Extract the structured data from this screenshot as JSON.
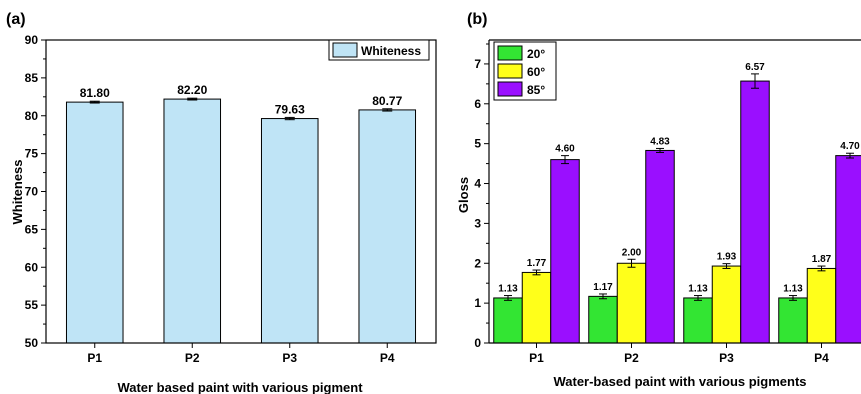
{
  "colors": {
    "bar_a": "#bfe4f6",
    "g20": "#33e533",
    "g60": "#ffff1a",
    "g85": "#9a0fff",
    "axis": "#000000"
  },
  "chart_data": [
    {
      "panel_label": "(a)",
      "type": "bar",
      "categories": [
        "P1",
        "P2",
        "P3",
        "P4"
      ],
      "series": [
        {
          "name": "Whiteness",
          "values": [
            81.8,
            82.2,
            79.63,
            80.77
          ],
          "errors": [
            0.12,
            0.12,
            0.15,
            0.15
          ]
        }
      ],
      "value_labels": [
        "81.80",
        "82.20",
        "79.63",
        "80.77"
      ],
      "xlabel": "Water based paint with various pigment",
      "ylabel": "Whiteness",
      "ylim": [
        50,
        90
      ],
      "yticks": [
        "50",
        "55",
        "60",
        "65",
        "70",
        "75",
        "80",
        "85",
        "90"
      ],
      "legend": "top-right",
      "grid": false
    },
    {
      "panel_label": "(b)",
      "type": "bar",
      "categories": [
        "P1",
        "P2",
        "P3",
        "P4"
      ],
      "series": [
        {
          "name": "20°",
          "values": [
            1.13,
            1.17,
            1.13,
            1.13
          ],
          "errors": [
            0.06,
            0.06,
            0.06,
            0.06
          ],
          "labels": [
            "1.13",
            "1.17",
            "1.13",
            "1.13"
          ]
        },
        {
          "name": "60°",
          "values": [
            1.77,
            2.0,
            1.93,
            1.87
          ],
          "errors": [
            0.06,
            0.1,
            0.06,
            0.06
          ],
          "labels": [
            "1.77",
            "2.00",
            "1.93",
            "1.87"
          ]
        },
        {
          "name": "85°",
          "values": [
            4.6,
            4.83,
            6.57,
            4.7
          ],
          "errors": [
            0.1,
            0.05,
            0.18,
            0.06
          ],
          "labels": [
            "4.60",
            "4.83",
            "6.57",
            "4.70"
          ]
        }
      ],
      "xlabel": "Water-based paint with various pigments",
      "ylabel": "Gloss",
      "ylim": [
        0,
        7.6
      ],
      "yticks": [
        "0",
        "1",
        "2",
        "3",
        "4",
        "5",
        "6",
        "7"
      ],
      "legend": "top-left",
      "grid": false
    }
  ]
}
